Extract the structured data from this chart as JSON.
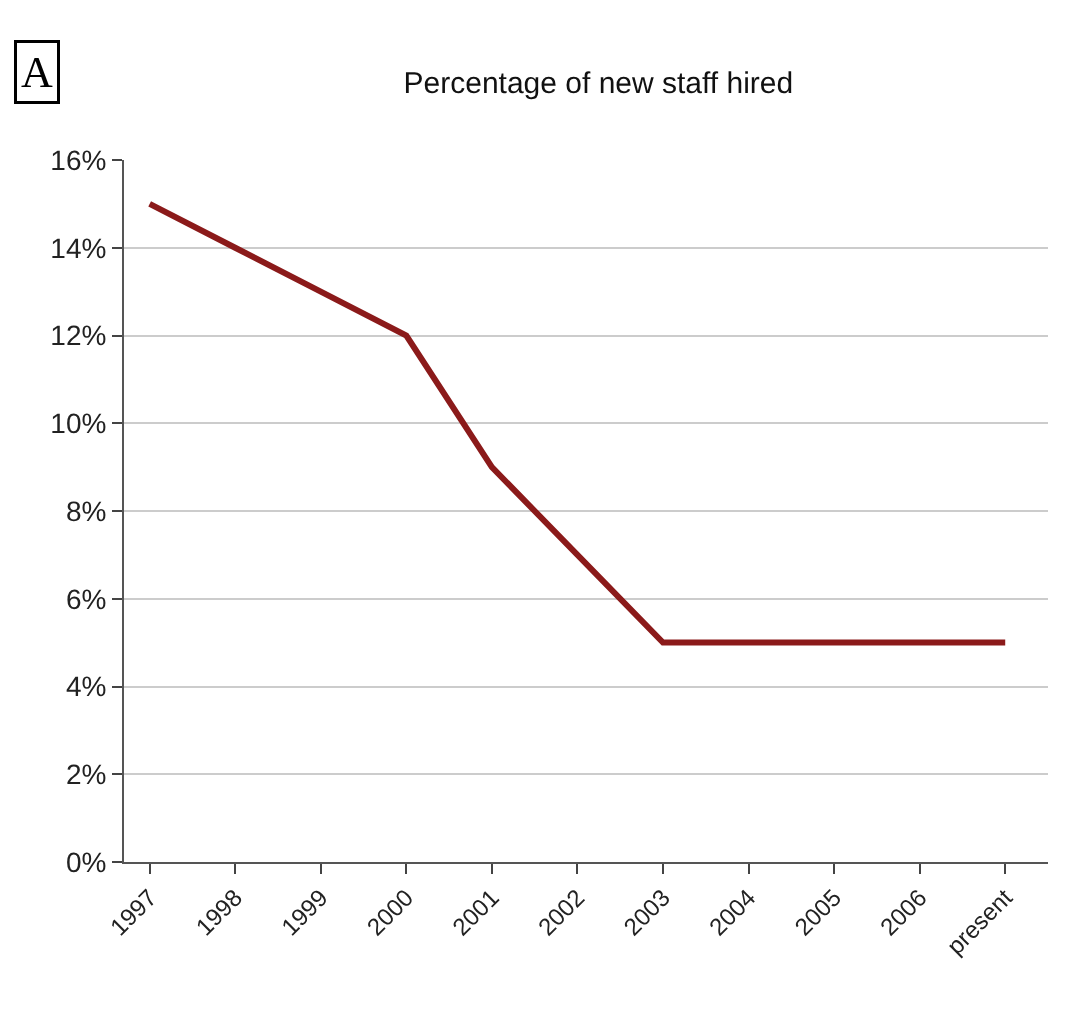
{
  "chart_data": {
    "type": "line",
    "title": "Percentage of new staff hired",
    "categories": [
      "1997",
      "1998",
      "1999",
      "2000",
      "2001",
      "2002",
      "2003",
      "2004",
      "2005",
      "2006",
      "present"
    ],
    "series": [
      {
        "color": "#8b1a1a",
        "values": [
          15,
          14,
          13,
          12,
          9,
          7,
          5,
          5,
          5,
          5,
          5
        ]
      }
    ],
    "ylim": [
      0,
      16
    ],
    "yticks": [
      {
        "value": 0,
        "label": "0%"
      },
      {
        "value": 2,
        "label": "2%"
      },
      {
        "value": 4,
        "label": "4%"
      },
      {
        "value": 6,
        "label": "6%"
      },
      {
        "value": 8,
        "label": "8%"
      },
      {
        "value": 10,
        "label": "10%"
      },
      {
        "value": 12,
        "label": "12%"
      },
      {
        "value": 14,
        "label": "14%"
      },
      {
        "value": 16,
        "label": "16%"
      }
    ],
    "grid": "y",
    "marker": "none",
    "line_style": "solid",
    "annotations": [
      "A"
    ]
  }
}
